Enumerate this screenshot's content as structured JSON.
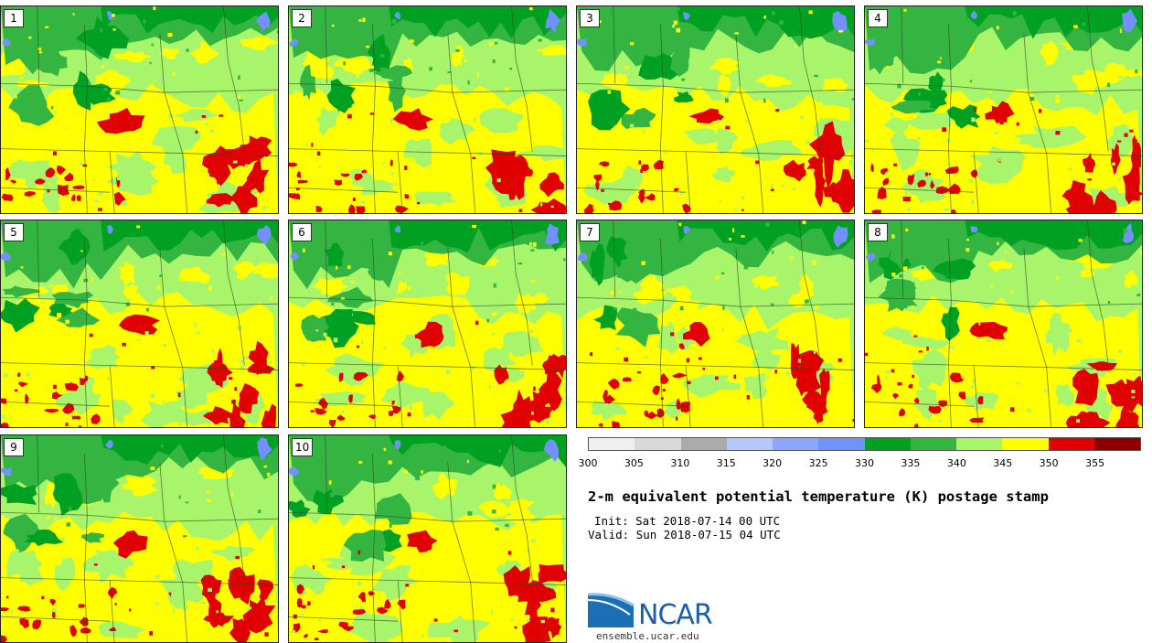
{
  "figure": {
    "title": "2-m equivalent potential temperature (K) postage stamp",
    "init": "Init: Sat 2018-07-14 00 UTC",
    "valid": "Valid: Sun 2018-07-15 04 UTC"
  },
  "members": [
    {
      "label": "1"
    },
    {
      "label": "2"
    },
    {
      "label": "3"
    },
    {
      "label": "4"
    },
    {
      "label": "5"
    },
    {
      "label": "6"
    },
    {
      "label": "7"
    },
    {
      "label": "8"
    },
    {
      "label": "9"
    },
    {
      "label": "10"
    }
  ],
  "colorbar": {
    "unit": "K",
    "ticks": [
      "300",
      "305",
      "310",
      "315",
      "320",
      "325",
      "330",
      "335",
      "340",
      "345",
      "350",
      "355"
    ],
    "colors": [
      "#f0f0f0",
      "#d9d9d9",
      "#ababab",
      "#b4c8ff",
      "#8ca5ff",
      "#7291ff",
      "#00a122",
      "#34b542",
      "#a8f46a",
      "#ffff00",
      "#e10000",
      "#8c0000"
    ]
  },
  "map_colors": {
    "darkgreen": "#00a122",
    "midgreen": "#34b542",
    "lightgreen": "#a8f46a",
    "yellow": "#ffff00",
    "red": "#e10000",
    "lake": "#7291ff",
    "border": "#2d4a1e"
  },
  "branding": {
    "logo_text": "NCAR",
    "url": "ensemble.ucar.edu"
  }
}
